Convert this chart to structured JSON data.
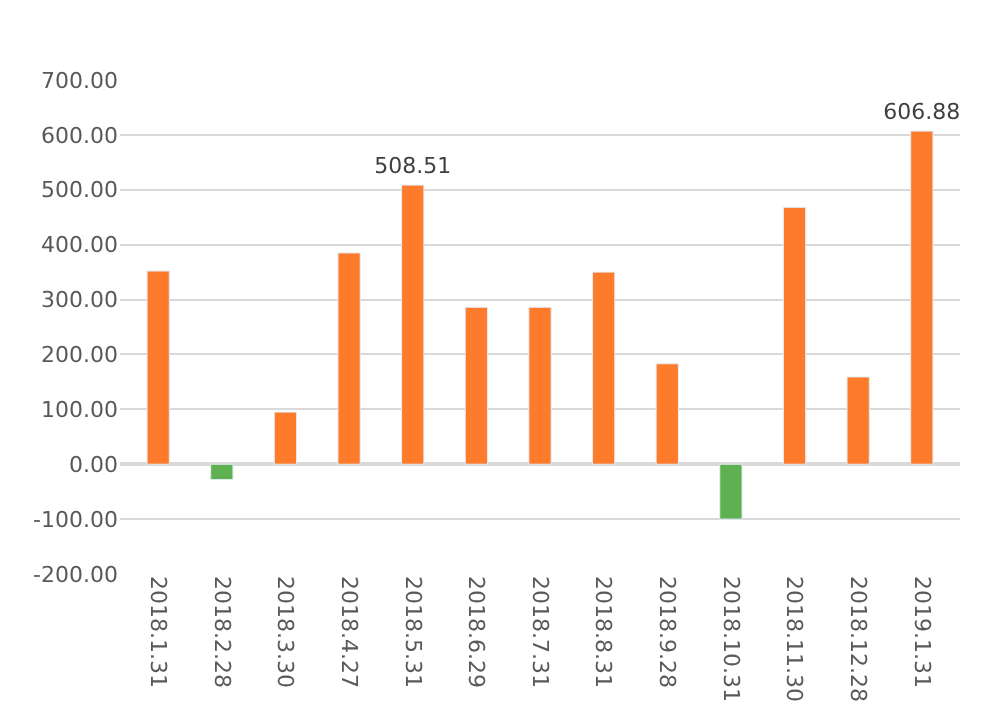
{
  "chart_data": {
    "type": "bar",
    "categories": [
      "2018.1.31",
      "2018.2.28",
      "2018.3.30",
      "2018.4.27",
      "2018.5.31",
      "2018.6.29",
      "2018.7.31",
      "2018.8.31",
      "2018.9.28",
      "2018.10.31",
      "2018.11.30",
      "2018.12.28",
      "2019.1.31"
    ],
    "values": [
      352,
      -28,
      95,
      385,
      508.51,
      286,
      286,
      350,
      183,
      -100,
      468,
      159,
      606.88
    ],
    "colors": [
      "#fd7b2a",
      "#5db151",
      "#fd7b2a",
      "#fd7b2a",
      "#fd7b2a",
      "#fd7b2a",
      "#fd7b2a",
      "#fd7b2a",
      "#fd7b2a",
      "#5db151",
      "#fd7b2a",
      "#fd7b2a",
      "#fd7b2a"
    ],
    "value_labels": [
      null,
      null,
      null,
      null,
      "508.51",
      null,
      null,
      null,
      null,
      null,
      null,
      null,
      "606.88"
    ],
    "ylim": [
      -200,
      700
    ],
    "yticks": [
      {
        "value": -200,
        "label": "-200.00"
      },
      {
        "value": -100,
        "label": "-100.00"
      },
      {
        "value": 0,
        "label": "0.00"
      },
      {
        "value": 100,
        "label": "100.00"
      },
      {
        "value": 200,
        "label": "200.00"
      },
      {
        "value": 300,
        "label": "300.00"
      },
      {
        "value": 400,
        "label": "400.00"
      },
      {
        "value": 500,
        "label": "500.00"
      },
      {
        "value": 600,
        "label": "600.00"
      },
      {
        "value": 700,
        "label": "700.00"
      }
    ],
    "grid": "y"
  }
}
